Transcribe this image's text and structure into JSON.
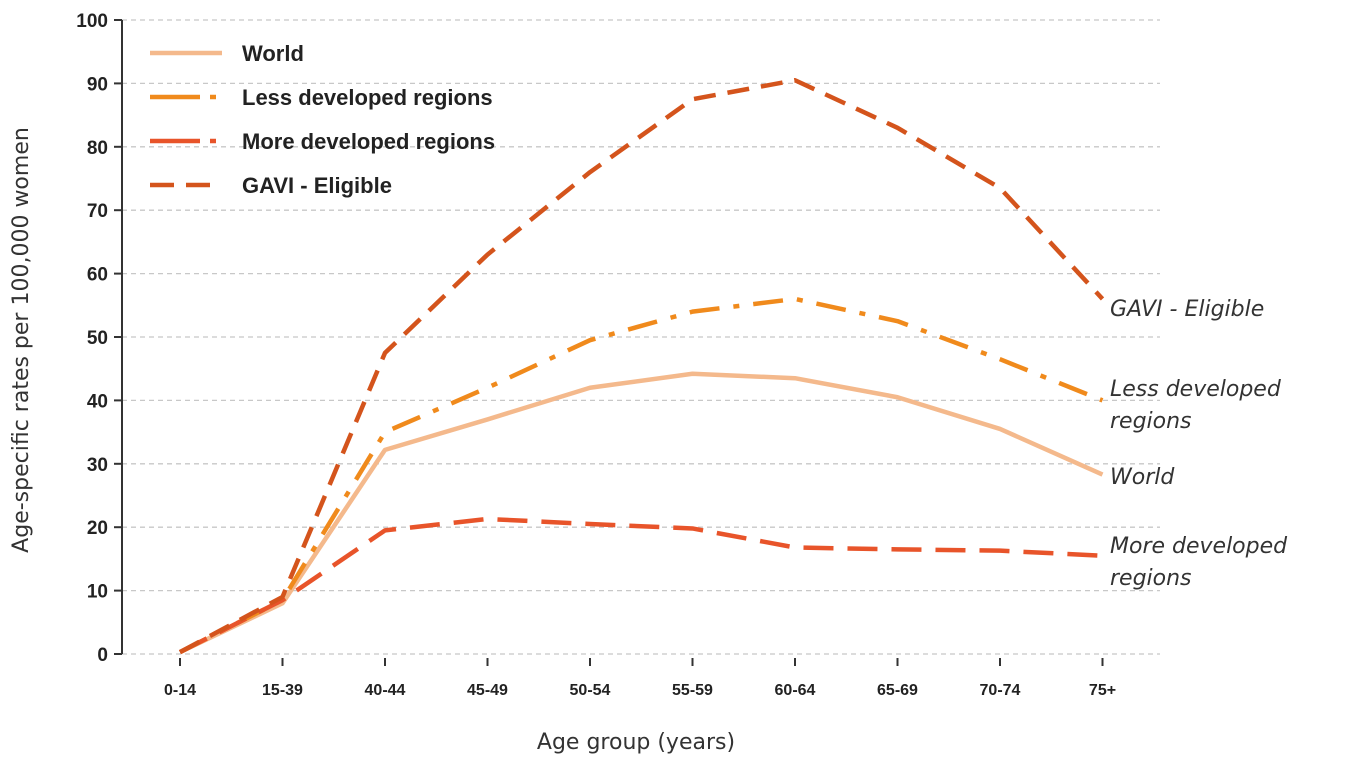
{
  "chart_data": {
    "type": "line",
    "xlabel": "Age group (years)",
    "ylabel": "Age-specific rates per 100,000 women",
    "ylim": [
      0,
      100
    ],
    "yticks": [
      0,
      10,
      20,
      30,
      40,
      50,
      60,
      70,
      80,
      90,
      100
    ],
    "grid": "horizontal dashed",
    "legend_position": "top-left",
    "categories": [
      "0-14",
      "15-39",
      "40-44",
      "45-49",
      "50-54",
      "55-59",
      "60-64",
      "65-69",
      "70-74",
      "75+"
    ],
    "series": [
      {
        "name": "World",
        "color": "#f4b98c",
        "style": "solid",
        "end_label": [
          "World"
        ],
        "values": [
          0.3,
          8.0,
          32.2,
          37.0,
          42.0,
          44.2,
          43.5,
          40.5,
          35.5,
          28.3
        ]
      },
      {
        "name": "Less developed regions",
        "color": "#f08a1c",
        "style": "dash-dot",
        "end_label": [
          "Less developed",
          "regions"
        ],
        "values": [
          0.3,
          8.5,
          35.0,
          42.0,
          49.5,
          54.0,
          56.0,
          52.5,
          46.5,
          40.0
        ]
      },
      {
        "name": "More developed regions",
        "color": "#e8542a",
        "style": "long-dash",
        "end_label": [
          "More developed",
          "regions"
        ],
        "values": [
          0.3,
          8.5,
          19.5,
          21.3,
          20.5,
          19.8,
          16.8,
          16.5,
          16.3,
          15.5
        ]
      },
      {
        "name": "GAVI - Eligible",
        "color": "#d4541c",
        "style": "dash",
        "end_label": [
          "GAVI - Eligible"
        ],
        "values": [
          0.3,
          9.0,
          47.5,
          63.0,
          76.0,
          87.5,
          90.5,
          83.0,
          73.5,
          56.0
        ]
      }
    ]
  }
}
